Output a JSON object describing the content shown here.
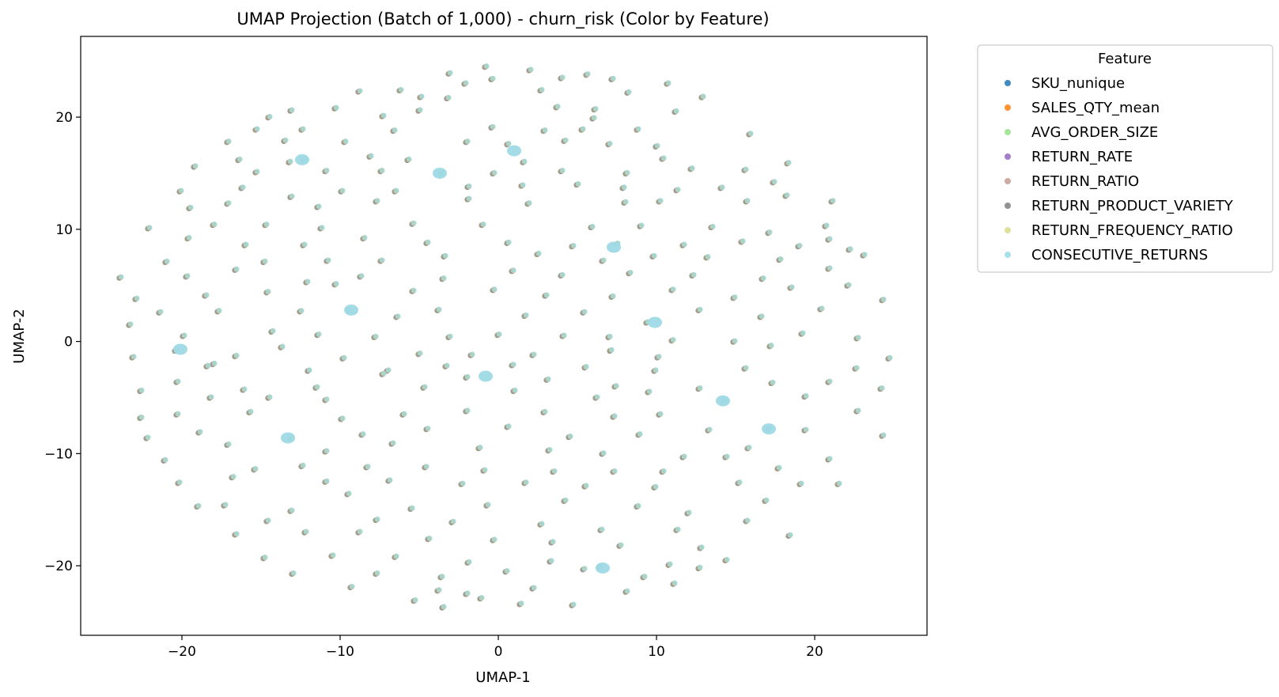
{
  "chart_data": {
    "type": "scatter",
    "title": "UMAP Projection (Batch of 1,000) - churn_risk (Color by Feature)",
    "xlabel": "UMAP-1",
    "ylabel": "UMAP-2",
    "xlim": [
      -26.4,
      27.1
    ],
    "ylim": [
      -26.2,
      27.2
    ],
    "xticks": [
      -20,
      -10,
      0,
      10,
      20
    ],
    "yticks": [
      -20,
      -10,
      0,
      10,
      20
    ],
    "xtick_labels": [
      "−20",
      "−10",
      "0",
      "10",
      "20"
    ],
    "ytick_labels": [
      "−20",
      "−10",
      "0",
      "10",
      "20"
    ],
    "grid": false,
    "legend": {
      "title": "Feature",
      "placement": "outside-upper-right"
    },
    "marker_alpha": 0.7,
    "series": [
      {
        "name": "SKU_nunique",
        "color": "#1f77b4"
      },
      {
        "name": "SALES_QTY_mean",
        "color": "#ff7f0e"
      },
      {
        "name": "AVG_ORDER_SIZE",
        "color": "#98df8a"
      },
      {
        "name": "RETURN_RATE",
        "color": "#9467bd"
      },
      {
        "name": "RETURN_RATIO",
        "color": "#c49c94"
      },
      {
        "name": "RETURN_PRODUCT_VARIETY",
        "color": "#7f7f7f"
      },
      {
        "name": "RETURN_FREQUENCY_RATIO",
        "color": "#dbdb8d"
      },
      {
        "name": "CONSECUTIVE_RETURNS",
        "color": "#9edae5"
      }
    ],
    "points_shared_by_all_series": [
      [
        -0.8,
        24.5
      ],
      [
        2.0,
        24.2
      ],
      [
        -3.1,
        23.9
      ],
      [
        4.0,
        23.5
      ],
      [
        5.6,
        23.8
      ],
      [
        7.2,
        23.4
      ],
      [
        -0.4,
        23.4
      ],
      [
        -2.1,
        23.0
      ],
      [
        10.7,
        23.0
      ],
      [
        -6.2,
        22.4
      ],
      [
        -8.8,
        22.3
      ],
      [
        2.7,
        22.4
      ],
      [
        8.2,
        22.2
      ],
      [
        -4.9,
        21.8
      ],
      [
        -3.2,
        21.7
      ],
      [
        12.9,
        21.8
      ],
      [
        -13.1,
        20.6
      ],
      [
        -10.3,
        20.8
      ],
      [
        -5.0,
        20.6
      ],
      [
        3.7,
        20.9
      ],
      [
        6.1,
        20.7
      ],
      [
        11.2,
        20.5
      ],
      [
        -14.5,
        20.0
      ],
      [
        -7.3,
        20.1
      ],
      [
        -0.4,
        19.1
      ],
      [
        2.9,
        18.8
      ],
      [
        15.9,
        18.5
      ],
      [
        -15.3,
        18.9
      ],
      [
        -12.4,
        18.9
      ],
      [
        -6.6,
        18.8
      ],
      [
        5.3,
        18.9
      ],
      [
        8.8,
        18.9
      ],
      [
        -17.1,
        17.8
      ],
      [
        -9.7,
        17.8
      ],
      [
        -2.0,
        17.8
      ],
      [
        0.6,
        17.6
      ],
      [
        4.2,
        17.9
      ],
      [
        7.0,
        17.6
      ],
      [
        10.0,
        17.4
      ],
      [
        -12.3,
        16.2
      ],
      [
        -16.4,
        16.2
      ],
      [
        -13.2,
        16.0
      ],
      [
        -8.1,
        16.5
      ],
      [
        -5.7,
        16.2
      ],
      [
        1.6,
        16.0
      ],
      [
        10.4,
        16.3
      ],
      [
        18.3,
        15.9
      ],
      [
        -19.2,
        15.6
      ],
      [
        -15.3,
        15.1
      ],
      [
        -10.9,
        15.2
      ],
      [
        -7.4,
        15.2
      ],
      [
        -3.6,
        15.0
      ],
      [
        -0.3,
        15.0
      ],
      [
        4.0,
        15.2
      ],
      [
        8.1,
        15.0
      ],
      [
        12.2,
        15.4
      ],
      [
        15.6,
        15.3
      ],
      [
        -20.1,
        13.4
      ],
      [
        -16.2,
        13.7
      ],
      [
        -13.1,
        12.9
      ],
      [
        -9.9,
        13.4
      ],
      [
        -6.5,
        13.4
      ],
      [
        -1.9,
        13.8
      ],
      [
        1.5,
        13.9
      ],
      [
        5.0,
        14.0
      ],
      [
        7.9,
        13.7
      ],
      [
        11.3,
        13.5
      ],
      [
        14.1,
        13.7
      ],
      [
        18.2,
        13.0
      ],
      [
        -19.5,
        11.9
      ],
      [
        -17.1,
        12.3
      ],
      [
        -11.4,
        12.0
      ],
      [
        -7.7,
        12.5
      ],
      [
        -1.9,
        12.7
      ],
      [
        1.9,
        12.3
      ],
      [
        8.0,
        12.4
      ],
      [
        10.2,
        12.5
      ],
      [
        15.7,
        12.5
      ],
      [
        21.1,
        12.5
      ],
      [
        -22.1,
        10.1
      ],
      [
        -18.0,
        10.4
      ],
      [
        -14.7,
        10.4
      ],
      [
        -11.2,
        10.1
      ],
      [
        -5.4,
        10.5
      ],
      [
        -1.0,
        10.4
      ],
      [
        5.9,
        10.2
      ],
      [
        9.0,
        10.3
      ],
      [
        13.5,
        10.2
      ],
      [
        17.1,
        9.7
      ],
      [
        20.7,
        10.3
      ],
      [
        -19.6,
        9.2
      ],
      [
        -16.0,
        8.6
      ],
      [
        -12.3,
        8.6
      ],
      [
        -8.5,
        9.2
      ],
      [
        -4.5,
        8.8
      ],
      [
        0.6,
        8.8
      ],
      [
        4.7,
        8.5
      ],
      [
        7.5,
        8.7
      ],
      [
        11.7,
        8.6
      ],
      [
        15.4,
        8.9
      ],
      [
        19.0,
        8.5
      ],
      [
        22.2,
        8.2
      ],
      [
        -21.0,
        7.1
      ],
      [
        -14.8,
        7.1
      ],
      [
        -10.8,
        7.2
      ],
      [
        -7.4,
        7.2
      ],
      [
        -3.4,
        7.6
      ],
      [
        2.5,
        7.8
      ],
      [
        6.6,
        7.2
      ],
      [
        9.8,
        7.6
      ],
      [
        13.2,
        7.5
      ],
      [
        17.8,
        7.3
      ],
      [
        23.1,
        7.7
      ],
      [
        -23.9,
        5.7
      ],
      [
        -19.7,
        5.8
      ],
      [
        -16.6,
        6.4
      ],
      [
        -12.1,
        5.3
      ],
      [
        -8.7,
        5.8
      ],
      [
        -3.5,
        5.6
      ],
      [
        0.9,
        6.3
      ],
      [
        4.0,
        5.9
      ],
      [
        8.3,
        6.1
      ],
      [
        12.3,
        5.9
      ],
      [
        16.7,
        5.6
      ],
      [
        20.9,
        6.5
      ],
      [
        -22.9,
        3.8
      ],
      [
        -18.5,
        4.1
      ],
      [
        -14.6,
        4.4
      ],
      [
        -10.3,
        5.1
      ],
      [
        -5.4,
        4.5
      ],
      [
        -0.3,
        4.6
      ],
      [
        3.0,
        4.1
      ],
      [
        7.2,
        4.0
      ],
      [
        11.0,
        4.6
      ],
      [
        14.9,
        3.9
      ],
      [
        18.5,
        4.8
      ],
      [
        22.1,
        5.0
      ],
      [
        24.3,
        3.7
      ],
      [
        -21.4,
        2.6
      ],
      [
        -17.7,
        2.7
      ],
      [
        -12.5,
        2.7
      ],
      [
        -9.4,
        2.8
      ],
      [
        -6.4,
        2.2
      ],
      [
        -3.8,
        2.8
      ],
      [
        1.7,
        2.3
      ],
      [
        5.4,
        2.6
      ],
      [
        9.4,
        1.7
      ],
      [
        12.7,
        2.8
      ],
      [
        16.6,
        2.2
      ],
      [
        20.4,
        2.9
      ],
      [
        -23.3,
        1.5
      ],
      [
        -19.9,
        0.5
      ],
      [
        -14.3,
        0.9
      ],
      [
        -11.4,
        0.6
      ],
      [
        -7.8,
        0.4
      ],
      [
        -3.1,
        0.4
      ],
      [
        0.0,
        0.6
      ],
      [
        4.1,
        0.5
      ],
      [
        7.0,
        0.4
      ],
      [
        11.0,
        0.1
      ],
      [
        14.9,
        0.0
      ],
      [
        19.2,
        0.7
      ],
      [
        22.7,
        0.3
      ],
      [
        -20.4,
        -0.8
      ],
      [
        -16.6,
        -1.3
      ],
      [
        -13.7,
        -0.5
      ],
      [
        -9.8,
        -1.5
      ],
      [
        -5.0,
        -1.1
      ],
      [
        -1.7,
        -1.2
      ],
      [
        2.2,
        -1.2
      ],
      [
        7.1,
        -0.8
      ],
      [
        10.1,
        -1.4
      ],
      [
        17.2,
        -0.4
      ],
      [
        -23.1,
        -1.4
      ],
      [
        -18.0,
        -2.0
      ],
      [
        -12.0,
        -2.6
      ],
      [
        -7.0,
        -2.6
      ],
      [
        -3.3,
        -2.2
      ],
      [
        0.9,
        -2.1
      ],
      [
        5.5,
        -2.3
      ],
      [
        9.9,
        -2.6
      ],
      [
        15.6,
        -2.4
      ],
      [
        22.6,
        -2.4
      ],
      [
        24.7,
        -1.5
      ],
      [
        -20.3,
        -3.6
      ],
      [
        -16.1,
        -4.3
      ],
      [
        -11.5,
        -4.1
      ],
      [
        -7.3,
        -2.9
      ],
      [
        -2.0,
        -3.2
      ],
      [
        3.1,
        -3.4
      ],
      [
        7.4,
        -4.0
      ],
      [
        12.7,
        -4.2
      ],
      [
        17.3,
        -3.7
      ],
      [
        20.9,
        -3.6
      ],
      [
        -22.6,
        -4.4
      ],
      [
        -18.2,
        -5.0
      ],
      [
        -14.5,
        -5.0
      ],
      [
        -10.9,
        -5.2
      ],
      [
        -4.7,
        -4.1
      ],
      [
        1.0,
        -4.4
      ],
      [
        6.2,
        -5.0
      ],
      [
        9.5,
        -4.5
      ],
      [
        14.3,
        -5.3
      ],
      [
        19.4,
        -4.9
      ],
      [
        24.2,
        -4.2
      ],
      [
        -20.3,
        -6.5
      ],
      [
        -15.7,
        -6.3
      ],
      [
        -9.9,
        -6.9
      ],
      [
        -6.0,
        -6.5
      ],
      [
        -2.0,
        -6.2
      ],
      [
        2.9,
        -6.3
      ],
      [
        7.3,
        -6.7
      ],
      [
        10.2,
        -6.5
      ],
      [
        13.3,
        -7.9
      ],
      [
        17.1,
        -7.8
      ],
      [
        22.7,
        -6.2
      ],
      [
        -22.6,
        -6.8
      ],
      [
        -18.9,
        -8.1
      ],
      [
        -13.1,
        -8.6
      ],
      [
        -8.6,
        -8.3
      ],
      [
        -4.5,
        -7.8
      ],
      [
        0.6,
        -7.6
      ],
      [
        4.5,
        -8.5
      ],
      [
        8.9,
        -8.3
      ],
      [
        15.8,
        -9.5
      ],
      [
        19.4,
        -7.9
      ],
      [
        24.3,
        -8.4
      ],
      [
        -22.2,
        -8.6
      ],
      [
        -17.1,
        -9.2
      ],
      [
        -10.9,
        -9.8
      ],
      [
        -6.7,
        -9.1
      ],
      [
        -1.2,
        -9.5
      ],
      [
        3.2,
        -9.7
      ],
      [
        6.6,
        -10.0
      ],
      [
        11.7,
        -10.3
      ],
      [
        14.4,
        -10.3
      ],
      [
        20.9,
        -10.5
      ],
      [
        -21.1,
        -10.6
      ],
      [
        -15.4,
        -11.4
      ],
      [
        -12.4,
        -11.1
      ],
      [
        -8.3,
        -11.2
      ],
      [
        -4.6,
        -11.2
      ],
      [
        -0.9,
        -11.5
      ],
      [
        3.5,
        -11.6
      ],
      [
        7.3,
        -11.6
      ],
      [
        10.4,
        -11.6
      ],
      [
        17.7,
        -11.3
      ],
      [
        -20.2,
        -12.6
      ],
      [
        -16.8,
        -12.1
      ],
      [
        -10.9,
        -12.5
      ],
      [
        -6.9,
        -12.4
      ],
      [
        -2.3,
        -12.7
      ],
      [
        1.7,
        -12.6
      ],
      [
        5.5,
        -12.9
      ],
      [
        9.9,
        -13.0
      ],
      [
        15.2,
        -12.6
      ],
      [
        19.1,
        -12.7
      ],
      [
        21.5,
        -12.7
      ],
      [
        -17.3,
        -14.6
      ],
      [
        -13.1,
        -15.1
      ],
      [
        -9.5,
        -13.6
      ],
      [
        -5.5,
        -14.9
      ],
      [
        -0.7,
        -14.6
      ],
      [
        4.2,
        -14.2
      ],
      [
        8.8,
        -14.7
      ],
      [
        12.0,
        -15.3
      ],
      [
        16.9,
        -14.2
      ],
      [
        -19.0,
        -14.7
      ],
      [
        -14.6,
        -16.0
      ],
      [
        -7.7,
        -15.9
      ],
      [
        -2.9,
        -16.1
      ],
      [
        2.7,
        -16.3
      ],
      [
        6.5,
        -16.8
      ],
      [
        11.3,
        -16.8
      ],
      [
        15.7,
        -16.0
      ],
      [
        -16.6,
        -17.2
      ],
      [
        -12.2,
        -17.0
      ],
      [
        -8.8,
        -17.0
      ],
      [
        -4.4,
        -17.6
      ],
      [
        -0.3,
        -17.7
      ],
      [
        3.4,
        -17.9
      ],
      [
        7.7,
        -18.2
      ],
      [
        12.8,
        -18.4
      ],
      [
        18.4,
        -17.3
      ],
      [
        -14.8,
        -19.3
      ],
      [
        -10.5,
        -19.1
      ],
      [
        -6.5,
        -19.2
      ],
      [
        -1.9,
        -19.7
      ],
      [
        3.3,
        -19.6
      ],
      [
        6.4,
        -20.1
      ],
      [
        10.8,
        -19.9
      ],
      [
        14.4,
        -19.5
      ],
      [
        -13.0,
        -20.7
      ],
      [
        -7.7,
        -20.7
      ],
      [
        -3.6,
        -21.0
      ],
      [
        0.5,
        -20.5
      ],
      [
        5.4,
        -20.3
      ],
      [
        9.2,
        -21.0
      ],
      [
        12.7,
        -20.2
      ],
      [
        -9.3,
        -21.9
      ],
      [
        -3.8,
        -22.2
      ],
      [
        2.2,
        -22.0
      ],
      [
        8.1,
        -22.3
      ],
      [
        11.1,
        -21.6
      ],
      [
        -5.3,
        -23.1
      ],
      [
        -1.1,
        -22.9
      ],
      [
        1.4,
        -23.4
      ],
      [
        4.7,
        -23.5
      ],
      [
        -3.5,
        -23.7
      ],
      [
        -2.0,
        -22.5
      ],
      [
        -13.5,
        17.9
      ],
      [
        17.4,
        14.2
      ],
      [
        20.9,
        9.1
      ],
      [
        -18.4,
        -2.2
      ],
      [
        6.0,
        19.9
      ]
    ],
    "dense_clusters": [
      [
        -3.7,
        15.0
      ],
      [
        9.9,
        1.7
      ],
      [
        -0.8,
        -3.1
      ],
      [
        6.6,
        -20.2
      ],
      [
        7.3,
        8.4
      ],
      [
        -12.4,
        16.2
      ],
      [
        -13.3,
        -8.6
      ],
      [
        17.1,
        -7.8
      ],
      [
        -20.1,
        -0.7
      ],
      [
        14.2,
        -5.3
      ],
      [
        -9.3,
        2.8
      ],
      [
        1.0,
        17.0
      ]
    ]
  }
}
